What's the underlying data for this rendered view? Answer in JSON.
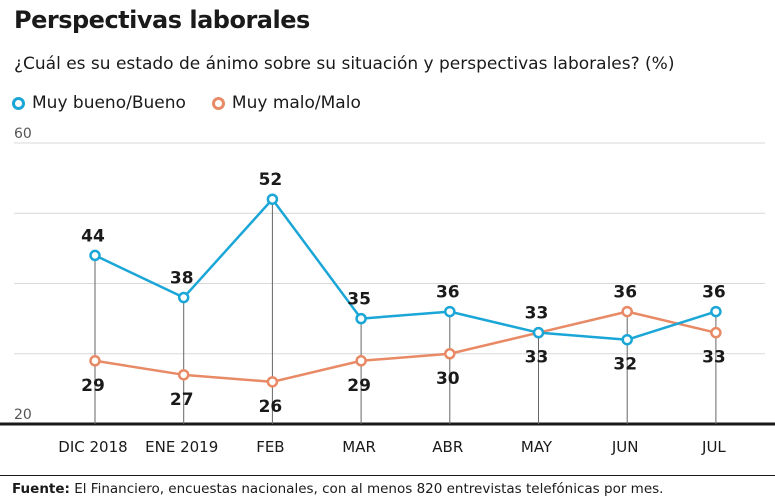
{
  "title": "Perspectivas laborales",
  "subtitle": "¿Cuál es su estado de ánimo sobre su situación y perspectivas laborales? (%)",
  "source_label": "Fuente:",
  "source_text": "El Financiero, encuestas nacionales, con al menos 820 entrevistas telefónicas por mes.",
  "chart_data": {
    "type": "line",
    "categories": [
      "DIC 2018",
      "ENE 2019",
      "FEB",
      "MAR",
      "ABR",
      "MAY",
      "JUN",
      "JUL"
    ],
    "ylim": [
      20,
      60
    ],
    "yticks": [
      20,
      60
    ],
    "grid": true,
    "legend_position": "top-left",
    "series": [
      {
        "name": "Muy bueno/Bueno",
        "color": "#1aa6d6",
        "values": [
          44,
          38,
          52,
          35,
          36,
          33,
          32,
          36
        ]
      },
      {
        "name": "Muy malo/Malo",
        "color": "#e88a66",
        "values": [
          29,
          27,
          26,
          29,
          30,
          33,
          36,
          33
        ]
      }
    ],
    "labels": {
      "blue": [
        "44",
        "38",
        "52",
        "35",
        "36",
        "33",
        "",
        "36"
      ],
      "orange": [
        "29",
        "27",
        "26",
        "29",
        "30",
        "33",
        "36",
        "33"
      ],
      "below": [
        "",
        "",
        "",
        "",
        "",
        "",
        "32",
        ""
      ]
    }
  }
}
